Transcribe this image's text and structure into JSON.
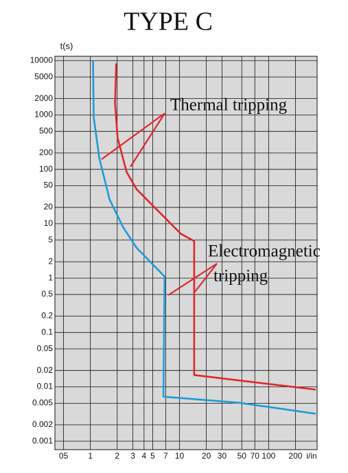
{
  "chart_data": {
    "type": "line",
    "title": "TYPE C",
    "y_label": "t(s)",
    "x_label": "i/in",
    "log_x": true,
    "log_y": true,
    "grid": true,
    "xlim": [
      0.4,
      350
    ],
    "ylim": [
      0.0007,
      12000
    ],
    "xticks": [
      {
        "value": 0.5,
        "label": "05"
      },
      1,
      2,
      3,
      4,
      5,
      7,
      10,
      20,
      30,
      50,
      70,
      100,
      200
    ],
    "yticks": [
      10000,
      5000,
      2000,
      1000,
      500,
      200,
      100,
      50,
      20,
      10,
      5,
      2,
      1,
      0.5,
      0.2,
      0.1,
      0.05,
      0.02,
      0.01,
      0.005,
      0.002,
      0.001
    ],
    "series": [
      {
        "color": "#1e9bd7",
        "x": [
          1.07,
          1.09,
          1.26,
          1.64,
          2.33,
          3.3,
          4.7,
          6.8,
          6.6,
          46.8,
          338
        ],
        "values": [
          10000,
          910,
          160,
          28,
          8.6,
          3.6,
          2,
          1.07,
          0.0066,
          0.0051,
          0.0032
        ]
      },
      {
        "color": "#e0262b",
        "x": [
          1.95,
          1.89,
          2.02,
          2.55,
          3.3,
          5.6,
          10.4,
          14.6,
          14.6,
          338
        ],
        "values": [
          8900,
          1640,
          380,
          89,
          43,
          18,
          6.5,
          4.8,
          0.0165,
          0.0089
        ]
      }
    ],
    "annotations": [
      "Thermal tripping",
      "Electromagnetic",
      "tripping"
    ]
  }
}
